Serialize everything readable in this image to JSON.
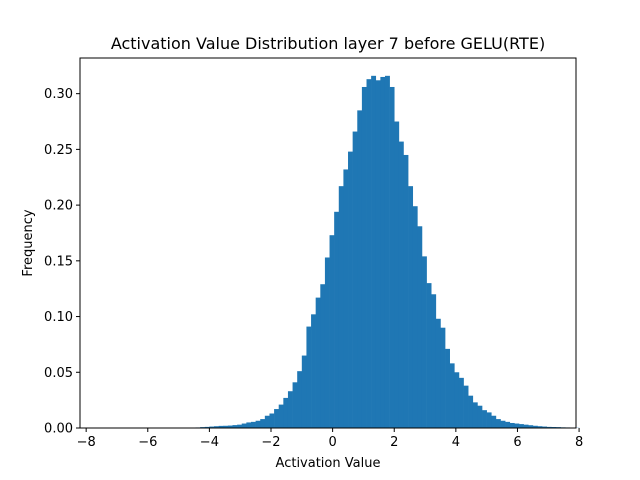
{
  "chart_data": {
    "type": "bar",
    "title": "Activation Value Distribution layer 7 before GELU(RTE)",
    "xlabel": "Activation Value",
    "ylabel": "Frequency",
    "xlim": [
      -8.2,
      7.9
    ],
    "ylim": [
      0,
      0.332
    ],
    "xticks": [
      -8,
      -6,
      -4,
      -2,
      0,
      2,
      4,
      6,
      8
    ],
    "yticks": [
      0.0,
      0.05,
      0.1,
      0.15,
      0.2,
      0.25,
      0.3
    ],
    "ytick_labels": [
      "0.00",
      "0.05",
      "0.10",
      "0.15",
      "0.20",
      "0.25",
      "0.30"
    ],
    "bar_color": "#1f77b4",
    "grid": false,
    "bins": {
      "start": -7.45,
      "width": 0.15,
      "values": [
        0,
        0,
        0,
        0,
        0,
        0,
        0,
        0,
        0,
        0,
        0,
        0,
        0,
        0,
        0,
        0,
        0,
        0,
        0.0002,
        0.0003,
        0.0005,
        0.0008,
        0.001,
        0.0013,
        0.0016,
        0.0019,
        0.002,
        0.0022,
        0.0026,
        0.003,
        0.004,
        0.005,
        0.0055,
        0.0065,
        0.008,
        0.011,
        0.013,
        0.017,
        0.021,
        0.027,
        0.033,
        0.041,
        0.051,
        0.065,
        0.091,
        0.102,
        0.117,
        0.129,
        0.153,
        0.173,
        0.194,
        0.217,
        0.232,
        0.248,
        0.266,
        0.285,
        0.306,
        0.313,
        0.316,
        0.312,
        0.315,
        0.316,
        0.306,
        0.275,
        0.257,
        0.245,
        0.217,
        0.199,
        0.181,
        0.154,
        0.13,
        0.12,
        0.098,
        0.09,
        0.071,
        0.058,
        0.05,
        0.045,
        0.038,
        0.029,
        0.023,
        0.02,
        0.016,
        0.014,
        0.011,
        0.008,
        0.0065,
        0.0055,
        0.0045,
        0.004,
        0.0035,
        0.003,
        0.0025,
        0.002,
        0.0016,
        0.0013,
        0.001,
        0.0009,
        0.0008,
        0.0006,
        0.0005,
        0.0003,
        0.0002,
        0,
        0,
        0,
        0
      ]
    }
  }
}
